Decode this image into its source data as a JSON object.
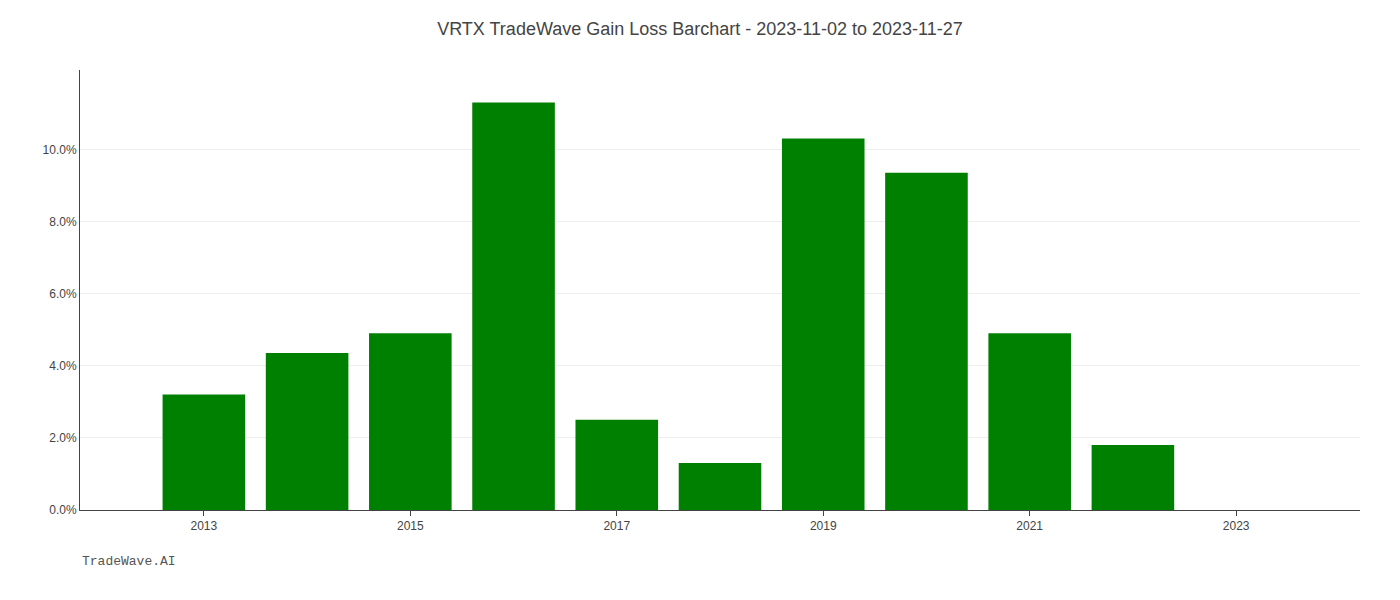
{
  "chart_data": {
    "type": "bar",
    "title": "VRTX TradeWave Gain Loss Barchart - 2023-11-02 to 2023-11-27",
    "annotations": [
      "TradeWave.AI"
    ],
    "x": [
      2013,
      2014,
      2015,
      2016,
      2017,
      2018,
      2019,
      2020,
      2021,
      2022
    ],
    "values": [
      0.032,
      0.0435,
      0.049,
      0.113,
      0.025,
      0.013,
      0.103,
      0.0935,
      0.049,
      0.018
    ],
    "color": "#008000",
    "xlim": [
      2011.8,
      2024.2
    ],
    "xticks": [
      2013,
      2015,
      2017,
      2019,
      2021,
      2023
    ],
    "ylim": [
      0,
      0.122
    ],
    "yticks": [
      {
        "value": 0.0,
        "label": "0.0%"
      },
      {
        "value": 0.02,
        "label": "2.0%"
      },
      {
        "value": 0.04,
        "label": "4.0%"
      },
      {
        "value": 0.06,
        "label": "6.0%"
      },
      {
        "value": 0.08,
        "label": "8.0%"
      },
      {
        "value": 0.1,
        "label": "10.0%"
      }
    ],
    "grid": true
  }
}
